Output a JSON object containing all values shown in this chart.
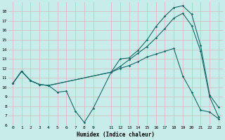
{
  "xlabel": "Humidex (Indice chaleur)",
  "background_color": "#c8ece9",
  "grid_color": "#d4b8b8",
  "line_color": "#1a6b6b",
  "xlim": [
    -0.5,
    23.5
  ],
  "ylim": [
    6,
    19
  ],
  "xticks": [
    0,
    1,
    2,
    3,
    4,
    5,
    6,
    7,
    8,
    9,
    11,
    12,
    13,
    14,
    15,
    16,
    17,
    18,
    19,
    20,
    21,
    22,
    23
  ],
  "yticks": [
    6,
    7,
    8,
    9,
    10,
    11,
    12,
    13,
    14,
    15,
    16,
    17,
    18
  ],
  "line1_x": [
    0,
    1,
    2,
    3,
    4,
    5,
    6,
    7,
    8,
    9,
    11,
    12,
    13,
    14,
    15,
    16,
    17,
    18,
    19,
    20,
    21,
    22,
    23
  ],
  "line1_y": [
    10.4,
    11.7,
    10.7,
    10.3,
    10.2,
    9.5,
    9.6,
    7.5,
    6.3,
    7.8,
    11.6,
    13.0,
    13.1,
    13.9,
    15.0,
    16.4,
    17.5,
    18.4,
    18.6,
    17.7,
    14.4,
    9.2,
    7.9
  ],
  "line2_x": [
    0,
    1,
    2,
    3,
    4,
    11,
    12,
    13,
    14,
    15,
    16,
    17,
    18,
    19,
    20,
    21,
    22,
    23
  ],
  "line2_y": [
    10.4,
    11.7,
    10.7,
    10.3,
    10.2,
    11.6,
    12.2,
    12.9,
    13.6,
    14.3,
    15.2,
    16.2,
    17.3,
    17.8,
    16.5,
    13.8,
    9.0,
    6.9
  ],
  "line3_x": [
    0,
    1,
    2,
    3,
    4,
    11,
    12,
    13,
    14,
    15,
    16,
    17,
    18,
    19,
    20,
    21,
    22,
    23
  ],
  "line3_y": [
    10.4,
    11.7,
    10.7,
    10.3,
    10.2,
    11.6,
    12.0,
    12.3,
    12.7,
    13.2,
    13.5,
    13.8,
    14.1,
    11.2,
    9.5,
    7.6,
    7.4,
    6.7
  ]
}
